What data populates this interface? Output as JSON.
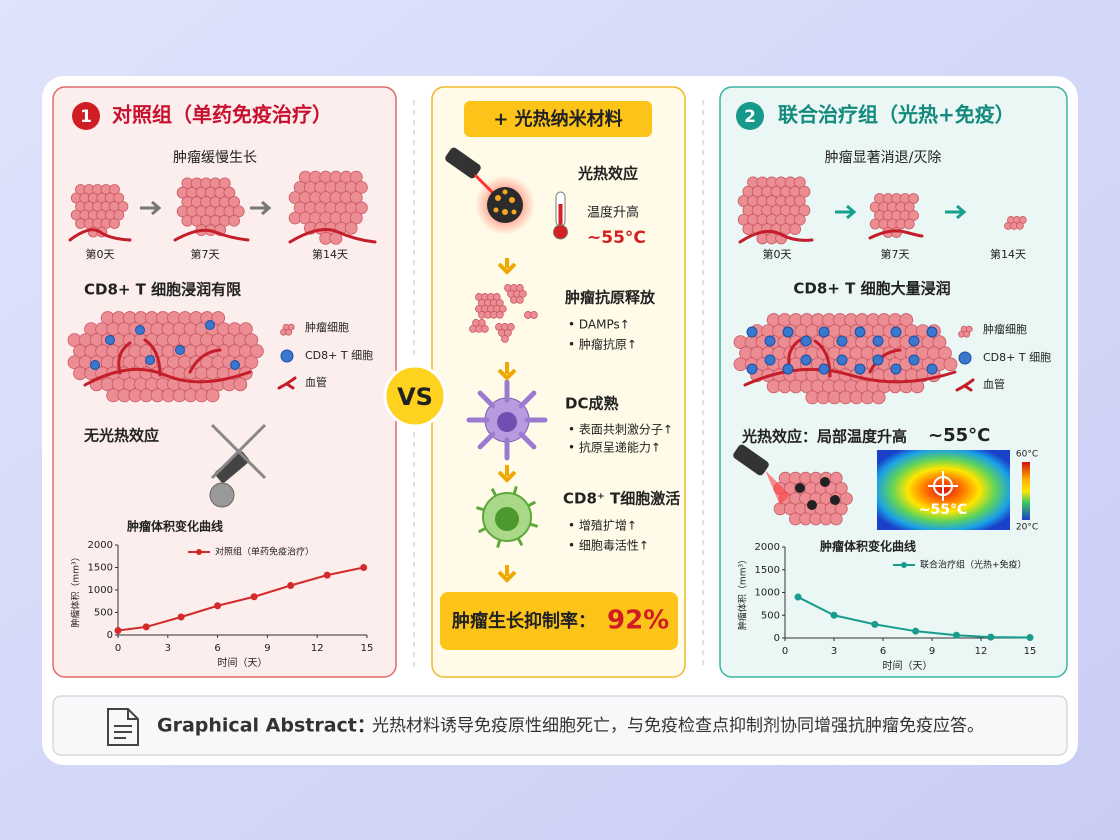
{
  "left": {
    "badge": "1",
    "title": "对照组（单药免疫治疗）",
    "growth": "肿瘤缓慢生长",
    "days": [
      "第0天",
      "第7天",
      "第14天"
    ],
    "infiltration": "CD8+ T 细胞浸润有限",
    "legend": [
      "肿瘤细胞",
      "CD8+ T 细胞",
      "血管"
    ],
    "no_effect": "无光热效应",
    "chart": {
      "type": "line",
      "title": "肿瘤体积变化曲线",
      "x": [
        0,
        1.7,
        3.8,
        6,
        8.2,
        10.4,
        12.6,
        14.8
      ],
      "series": [
        {
          "name": "对照组（单药免疫治疗）",
          "color": "#d42a2a",
          "values": [
            100,
            180,
            400,
            650,
            850,
            1100,
            1330,
            1500
          ]
        }
      ],
      "xlim": [
        0,
        15
      ],
      "ylim": [
        0,
        2000
      ],
      "xticks": [
        0,
        3,
        6,
        9,
        12,
        15
      ],
      "yticks": [
        0,
        500,
        1000,
        1500,
        2000
      ],
      "xlabel": "时间（天）",
      "ylabel": "肿瘤体积（mm³）"
    }
  },
  "vs": "VS",
  "center": {
    "title": "+ 光热纳米材料",
    "steps": [
      {
        "title": "光热效应",
        "items": [
          "温度升高"
        ],
        "highlight": "~55°C"
      },
      {
        "title": "肿瘤抗原释放",
        "items": [
          "• DAMPs↑",
          "• 肿瘤抗原↑"
        ]
      },
      {
        "title": "DC成熟",
        "items": [
          "• 表面共刺激分子↑",
          "• 抗原呈递能力↑"
        ]
      },
      {
        "title": "CD8⁺ T细胞激活",
        "items": [
          "• 增殖扩增↑",
          "• 细胞毒活性↑"
        ]
      }
    ],
    "result_label": "肿瘤生长抑制率：",
    "result_value": "92%"
  },
  "right": {
    "badge": "2",
    "title": "联合治疗组（光热+免疫）",
    "growth": "肿瘤显著消退/灭除",
    "days": [
      "第0天",
      "第7天",
      "第14天"
    ],
    "infiltration": "CD8+ T 细胞大量浸润",
    "legend": [
      "肿瘤细胞",
      "CD8+ T 细胞",
      "血管"
    ],
    "effect": "光热效应：局部温度升高",
    "effect_temp": "~55°C",
    "heatmap_label": "~55°C",
    "scale_max": "60°C",
    "scale_min": "20°C",
    "chart": {
      "type": "line",
      "title": "肿瘤体积变化曲线",
      "x": [
        0.8,
        3,
        5.5,
        8,
        10.5,
        12.6,
        15
      ],
      "series": [
        {
          "name": "联合治疗组（光热+免疫）",
          "color": "#1a9c8c",
          "values": [
            900,
            500,
            300,
            150,
            60,
            20,
            10
          ]
        }
      ],
      "xlim": [
        0,
        15
      ],
      "ylim": [
        0,
        2000
      ],
      "xticks": [
        0,
        3,
        6,
        9,
        12,
        15
      ],
      "yticks": [
        0,
        500,
        1000,
        1500,
        2000
      ],
      "xlabel": "时间（天）",
      "ylabel": "肿瘤体积（mm³）"
    }
  },
  "footer": {
    "label": "Graphical Abstract：",
    "text": "光热材料诱导免疫原性细胞死亡，与免疫检查点抑制剂协同增强抗肿瘤免疫应答。"
  }
}
